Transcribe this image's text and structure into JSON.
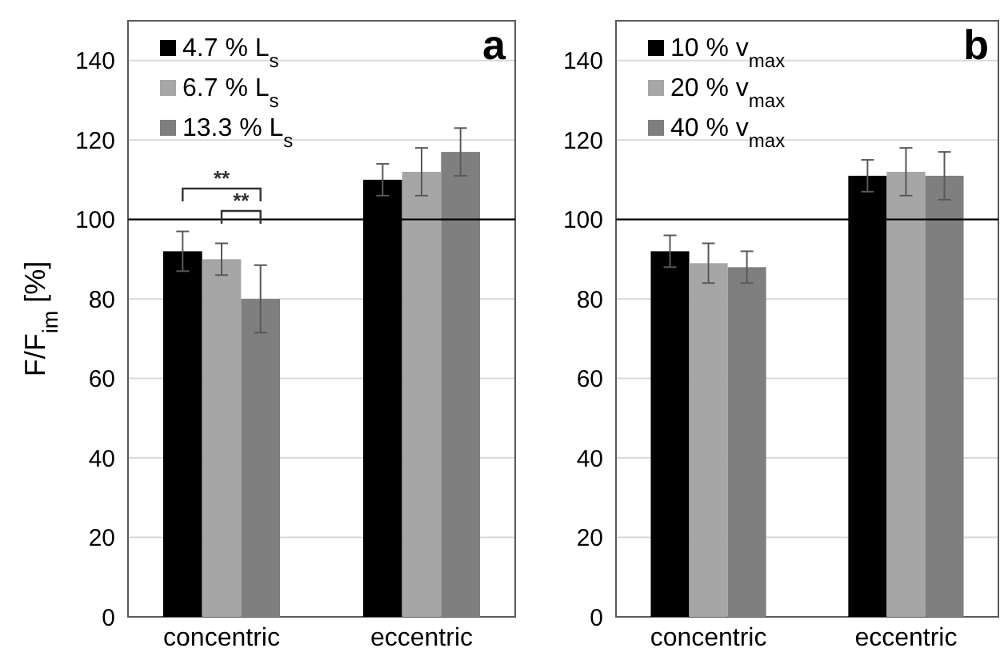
{
  "chart_data": [
    {
      "type": "bar",
      "title": "a",
      "ylabel": "F/F$_{im}$ [%]",
      "categories": [
        "concentric",
        "eccentric"
      ],
      "ylim": [
        0,
        150
      ],
      "yticks": [
        0,
        20,
        40,
        60,
        80,
        100,
        120,
        140
      ],
      "grid": "y",
      "legend": "top left",
      "series": [
        {
          "name": "4.7 % L$_{s}$",
          "color": "#000000",
          "values": [
            92,
            110
          ],
          "errors": [
            5,
            4
          ]
        },
        {
          "name": "6.7 % L$_{s}$",
          "color": "#a6a6a6",
          "values": [
            90,
            112
          ],
          "errors": [
            4,
            6
          ]
        },
        {
          "name": "13.3 % L$_{s}$",
          "color": "#7f7f7f",
          "values": [
            80,
            117
          ],
          "errors": [
            8.5,
            6
          ]
        }
      ],
      "ref_lines": [
        {
          "axis": "y",
          "value": 100,
          "color": "#000000"
        }
      ],
      "annotations": [
        "**",
        "**"
      ]
    },
    {
      "type": "bar",
      "title": "b",
      "categories": [
        "concentric",
        "eccentric"
      ],
      "ylim": [
        0,
        150
      ],
      "yticks": [
        0,
        20,
        40,
        60,
        80,
        100,
        120,
        140
      ],
      "grid": "y",
      "legend": "top left",
      "series": [
        {
          "name": "10 % v$_{max}$",
          "color": "#000000",
          "values": [
            92,
            111
          ],
          "errors": [
            4,
            4
          ]
        },
        {
          "name": "20 % v$_{max}$",
          "color": "#a6a6a6",
          "values": [
            89,
            112
          ],
          "errors": [
            5,
            6
          ]
        },
        {
          "name": "40 % v$_{max}$",
          "color": "#7f7f7f",
          "values": [
            88,
            111
          ],
          "errors": [
            4,
            6
          ]
        }
      ],
      "ref_lines": [
        {
          "axis": "y",
          "value": 100,
          "color": "#000000"
        }
      ]
    }
  ]
}
